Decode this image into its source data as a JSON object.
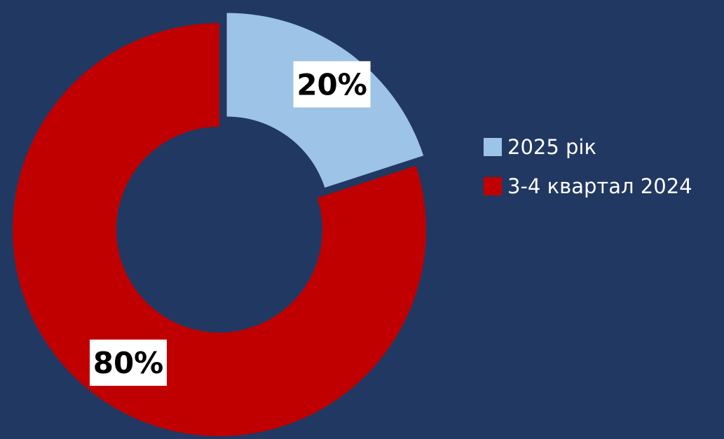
{
  "colors": {
    "background": "#213862",
    "slice_2025": "#9dc3e6",
    "slice_2024": "#c00000",
    "label_box": "#ffffff",
    "label_text": "#000000",
    "legend_text": "#ffffff"
  },
  "chart_data": {
    "type": "pie",
    "variant": "doughnut",
    "legend_position": "right",
    "slices": [
      {
        "name": "2025 рік",
        "value": 20,
        "label": "20%",
        "color": "#9dc3e6",
        "exploded": true
      },
      {
        "name": "3-4 квартал 2024",
        "value": 80,
        "label": "80%",
        "color": "#c00000",
        "exploded": false
      }
    ]
  },
  "legend": {
    "items": [
      {
        "label": "2025 рік",
        "color": "#9dc3e6"
      },
      {
        "label": "3-4 квартал 2024",
        "color": "#c00000"
      }
    ]
  }
}
